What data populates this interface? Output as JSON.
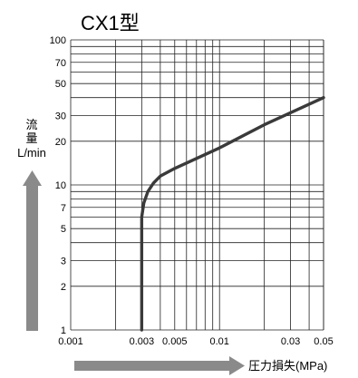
{
  "chart_data": {
    "type": "line",
    "title": "CX1型",
    "xlabel": "圧力損失(MPa)",
    "ylabel_lines": [
      "流",
      "量",
      "L/min"
    ],
    "x_scale": "log",
    "y_scale": "log",
    "xlim": [
      0.001,
      0.05
    ],
    "ylim": [
      1,
      100
    ],
    "grid": true,
    "x_tick_labels": [
      {
        "value": 0.001,
        "label": "0.001"
      },
      {
        "value": 0.003,
        "label": "0.003"
      },
      {
        "value": 0.005,
        "label": "0.005"
      },
      {
        "value": 0.01,
        "label": "0.01"
      },
      {
        "value": 0.03,
        "label": "0.03"
      },
      {
        "value": 0.05,
        "label": "0.05"
      }
    ],
    "y_tick_labels": [
      {
        "value": 1,
        "label": "1"
      },
      {
        "value": 2,
        "label": "2"
      },
      {
        "value": 3,
        "label": "3"
      },
      {
        "value": 5,
        "label": "5"
      },
      {
        "value": 7,
        "label": "7"
      },
      {
        "value": 10,
        "label": "10"
      },
      {
        "value": 20,
        "label": "20"
      },
      {
        "value": 30,
        "label": "30"
      },
      {
        "value": 50,
        "label": "50"
      },
      {
        "value": 70,
        "label": "70"
      },
      {
        "value": 100,
        "label": "100"
      }
    ],
    "series": [
      {
        "color": "#3a3a3a",
        "points": [
          {
            "x": 0.003,
            "y": 1
          },
          {
            "x": 0.003,
            "y": 3
          },
          {
            "x": 0.003,
            "y": 6
          },
          {
            "x": 0.0031,
            "y": 7.5
          },
          {
            "x": 0.0033,
            "y": 9
          },
          {
            "x": 0.0036,
            "y": 10.3
          },
          {
            "x": 0.004,
            "y": 11.5
          },
          {
            "x": 0.005,
            "y": 13
          },
          {
            "x": 0.01,
            "y": 18
          },
          {
            "x": 0.02,
            "y": 26
          },
          {
            "x": 0.05,
            "y": 40
          }
        ]
      }
    ],
    "arrow_color": "#8a8a8a"
  }
}
